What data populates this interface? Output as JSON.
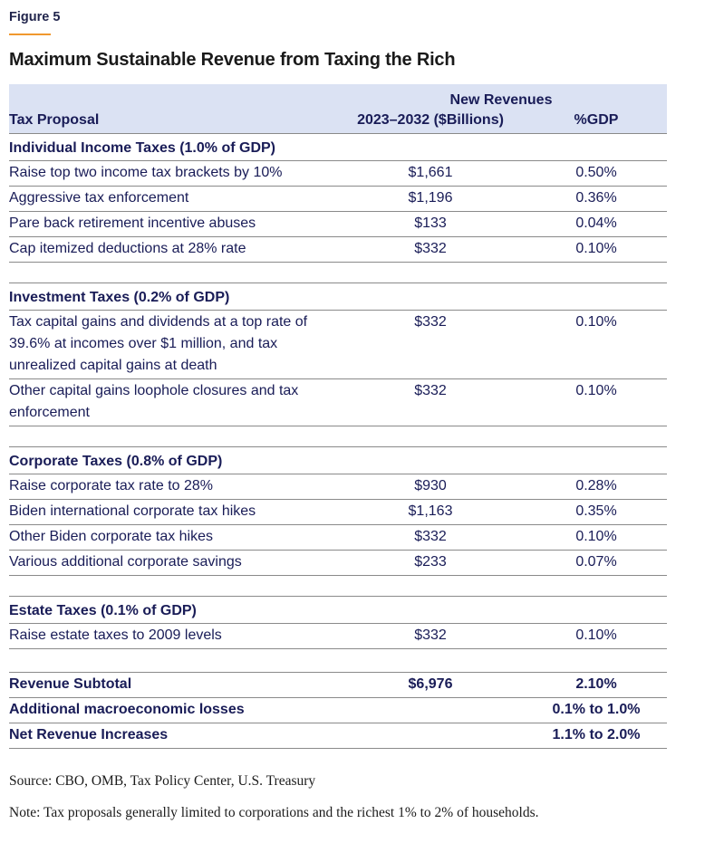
{
  "figure_label": "Figure 5",
  "title": "Maximum Sustainable Revenue from Taxing the Rich",
  "table": {
    "header": {
      "group_label": "New Revenues",
      "col_proposal": "Tax Proposal",
      "col_billions": "2023–2032 ($Billions)",
      "col_gdp": "%GDP"
    },
    "sections": [
      {
        "title": "Individual Income Taxes (1.0% of GDP)",
        "rows": [
          {
            "proposal": "Raise top two income tax brackets by 10%",
            "billions": "$1,661",
            "gdp": "0.50%"
          },
          {
            "proposal": "Aggressive tax enforcement",
            "billions": "$1,196",
            "gdp": "0.36%"
          },
          {
            "proposal": "Pare back retirement incentive abuses",
            "billions": "$133",
            "gdp": "0.04%"
          },
          {
            "proposal": "Cap itemized deductions at 28% rate",
            "billions": "$332",
            "gdp": "0.10%"
          }
        ]
      },
      {
        "title": "Investment Taxes (0.2% of GDP)",
        "rows": [
          {
            "proposal": "Tax capital gains and dividends at a top rate of 39.6% at incomes over $1 million, and tax unrealized capital gains at death",
            "billions": "$332",
            "gdp": "0.10%"
          },
          {
            "proposal": "Other capital gains loophole closures and tax enforcement",
            "billions": "$332",
            "gdp": "0.10%"
          }
        ]
      },
      {
        "title": "Corporate Taxes (0.8% of GDP)",
        "rows": [
          {
            "proposal": "Raise corporate tax rate to 28%",
            "billions": "$930",
            "gdp": "0.28%"
          },
          {
            "proposal": "Biden international corporate tax hikes",
            "billions": "$1,163",
            "gdp": "0.35%"
          },
          {
            "proposal": "Other Biden corporate tax hikes",
            "billions": "$332",
            "gdp": "0.10%"
          },
          {
            "proposal": "Various additional corporate savings",
            "billions": "$233",
            "gdp": "0.07%"
          }
        ]
      },
      {
        "title": "Estate Taxes (0.1% of GDP)",
        "rows": [
          {
            "proposal": "Raise estate taxes to 2009 levels",
            "billions": "$332",
            "gdp": "0.10%"
          }
        ]
      }
    ],
    "summary": [
      {
        "label": "Revenue Subtotal",
        "billions": "$6,976",
        "gdp": "2.10%"
      },
      {
        "label": "Additional macroeconomic losses",
        "billions": "",
        "gdp": "0.1% to 1.0%"
      },
      {
        "label": "Net Revenue Increases",
        "billions": "",
        "gdp": "1.1% to 2.0%"
      }
    ]
  },
  "footer": {
    "source": "Source: CBO, OMB, Tax Policy Center, U.S. Treasury",
    "note": "Note: Tax proposals generally limited to corporations and the richest 1% to 2% of households."
  },
  "colors": {
    "accent_orange": "#F0982E",
    "header_band_blue": "#DBE2F3",
    "text_navy": "#191C57",
    "rule_gray": "#8A8A8A"
  },
  "chart_data": {
    "type": "table",
    "title": "Maximum Sustainable Revenue from Taxing the Rich",
    "columns": [
      "Tax Proposal",
      "New Revenues 2023–2032 ($Billions)",
      "New Revenues %GDP"
    ],
    "rows": [
      [
        "Individual Income Taxes (1.0% of GDP)",
        null,
        null
      ],
      [
        "Raise top two income tax brackets by 10%",
        1661,
        0.5
      ],
      [
        "Aggressive tax enforcement",
        1196,
        0.36
      ],
      [
        "Pare back retirement incentive abuses",
        133,
        0.04
      ],
      [
        "Cap itemized deductions at 28% rate",
        332,
        0.1
      ],
      [
        "Investment Taxes (0.2% of GDP)",
        null,
        null
      ],
      [
        "Tax capital gains and dividends at a top rate of 39.6% at incomes over $1 million, and tax unrealized capital gains at death",
        332,
        0.1
      ],
      [
        "Other capital gains loophole closures and tax enforcement",
        332,
        0.1
      ],
      [
        "Corporate Taxes (0.8% of GDP)",
        null,
        null
      ],
      [
        "Raise corporate tax rate to 28%",
        930,
        0.28
      ],
      [
        "Biden international corporate tax hikes",
        1163,
        0.35
      ],
      [
        "Other Biden corporate tax hikes",
        332,
        0.1
      ],
      [
        "Various additional corporate savings",
        233,
        0.07
      ],
      [
        "Estate Taxes (0.1% of GDP)",
        null,
        null
      ],
      [
        "Raise estate taxes to 2009 levels",
        332,
        0.1
      ],
      [
        "Revenue Subtotal",
        6976,
        2.1
      ],
      [
        "Additional macroeconomic losses",
        null,
        "0.1% to 1.0%"
      ],
      [
        "Net Revenue Increases",
        null,
        "1.1% to 2.0%"
      ]
    ]
  }
}
